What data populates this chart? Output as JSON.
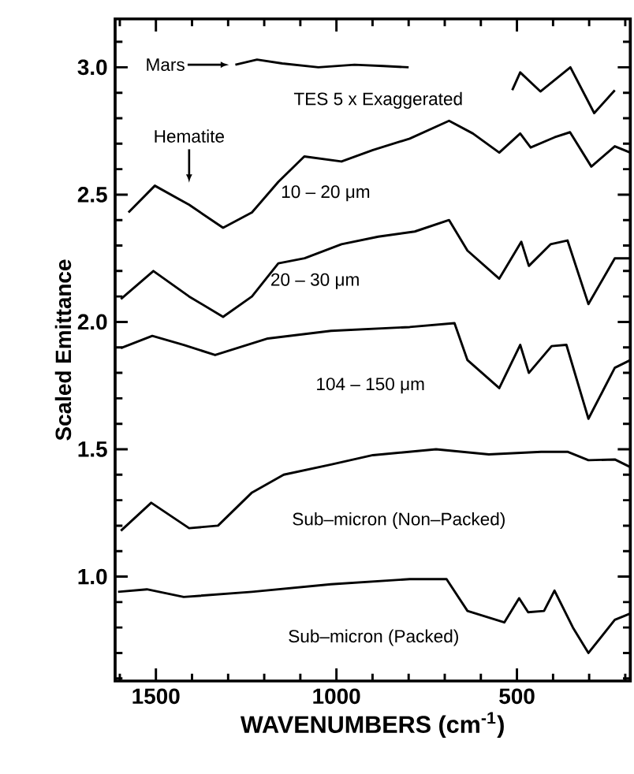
{
  "chart_data": {
    "type": "line",
    "xlabel": "WAVENUMBERS (cm$^{-1}$)",
    "ylabel": "Scaled Emittance",
    "xlim": [
      1613,
      186
    ],
    "ylim": [
      0.59,
      3.19
    ],
    "xticks": [
      1500,
      1000,
      500,
      {
        "value": 1600,
        "label": null
      },
      {
        "value": 1400,
        "label": null
      },
      {
        "value": 1300,
        "label": null
      },
      {
        "value": 1200,
        "label": null
      },
      {
        "value": 1100,
        "label": null
      },
      {
        "value": 900,
        "label": null
      },
      {
        "value": 800,
        "label": null
      },
      {
        "value": 700,
        "label": null
      },
      {
        "value": 600,
        "label": null
      },
      {
        "value": 400,
        "label": null
      },
      {
        "value": 300,
        "label": null
      },
      {
        "value": 200,
        "label": null
      }
    ],
    "yticks": [
      {
        "value": 1.0,
        "label": "1.0"
      },
      {
        "value": 1.5,
        "label": "1.5"
      },
      {
        "value": 2.0,
        "label": "2.0"
      },
      {
        "value": 2.5,
        "label": "2.5"
      },
      {
        "value": 3.0,
        "label": "3.0"
      },
      {
        "value": 0.6,
        "label": null
      },
      {
        "value": 0.7,
        "label": null
      },
      {
        "value": 0.8,
        "label": null
      },
      {
        "value": 0.9,
        "label": null
      },
      {
        "value": 1.1,
        "label": null
      },
      {
        "value": 1.2,
        "label": null
      },
      {
        "value": 1.3,
        "label": null
      },
      {
        "value": 1.4,
        "label": null
      },
      {
        "value": 1.6,
        "label": null
      },
      {
        "value": 1.7,
        "label": null
      },
      {
        "value": 1.8,
        "label": null
      },
      {
        "value": 1.9,
        "label": null
      },
      {
        "value": 2.1,
        "label": null
      },
      {
        "value": 2.2,
        "label": null
      },
      {
        "value": 2.3,
        "label": null
      },
      {
        "value": 2.4,
        "label": null
      },
      {
        "value": 2.6,
        "label": null
      },
      {
        "value": 2.7,
        "label": null
      },
      {
        "value": 2.8,
        "label": null
      },
      {
        "value": 2.9,
        "label": null
      },
      {
        "value": 3.1,
        "label": null
      }
    ],
    "grid": false,
    "legend": false,
    "marker": "none",
    "line_style": "solid",
    "series": [
      {
        "color": "#000000",
        "x": [
          1280,
          1220,
          1150,
          1050,
          950,
          870,
          800,
          null,
          513,
          491,
          435,
          352,
          286,
          229
        ],
        "values": [
          3.01,
          3.03,
          3.015,
          3.0,
          3.01,
          3.005,
          3.0,
          null,
          2.91,
          2.98,
          2.905,
          3.0,
          2.82,
          2.91
        ]
      },
      {
        "name": "10 – 20 μm",
        "color": "#000000",
        "x": [
          1576,
          1503,
          1408,
          1314,
          1234,
          1161,
          1089,
          986,
          899,
          797,
          688,
          622,
          549,
          491,
          462,
          396,
          353,
          294,
          229,
          186
        ],
        "values": [
          2.43,
          2.535,
          2.46,
          2.37,
          2.43,
          2.55,
          2.65,
          2.63,
          2.675,
          2.72,
          2.79,
          2.74,
          2.665,
          2.74,
          2.685,
          2.725,
          2.745,
          2.61,
          2.69,
          2.665
        ]
      },
      {
        "name": "20 – 30 μm",
        "color": "#000000",
        "x": [
          1597,
          1507,
          1408,
          1314,
          1234,
          1161,
          1088,
          986,
          884,
          783,
          688,
          637,
          549,
          488,
          467,
          407,
          360,
          302,
          229,
          186
        ],
        "values": [
          2.09,
          2.2,
          2.1,
          2.02,
          2.1,
          2.23,
          2.25,
          2.305,
          2.335,
          2.355,
          2.4,
          2.28,
          2.17,
          2.315,
          2.22,
          2.305,
          2.32,
          2.07,
          2.25,
          2.25
        ]
      },
      {
        "name": "104 – 150 μm",
        "color": "#000000",
        "x": [
          1597,
          1510,
          1423,
          1336,
          1190,
          1015,
          797,
          673,
          637,
          549,
          491,
          467,
          404,
          363,
          302,
          229,
          186
        ],
        "values": [
          1.897,
          1.945,
          1.91,
          1.87,
          1.935,
          1.965,
          1.98,
          1.995,
          1.85,
          1.74,
          1.91,
          1.8,
          1.905,
          1.91,
          1.62,
          1.82,
          1.85
        ]
      },
      {
        "name": "Sub–micron (Non–Packed)",
        "color": "#000000",
        "x": [
          1597,
          1513,
          1408,
          1328,
          1234,
          1146,
          1015,
          899,
          724,
          578,
          433,
          360,
          302,
          229,
          186
        ],
        "values": [
          1.18,
          1.29,
          1.19,
          1.2,
          1.33,
          1.4,
          1.44,
          1.477,
          1.5,
          1.48,
          1.49,
          1.49,
          1.457,
          1.46,
          1.43
        ]
      },
      {
        "name": "Sub–micron (Packed)",
        "color": "#000000",
        "x": [
          1605,
          1525,
          1423,
          1234,
          1015,
          797,
          695,
          637,
          535,
          494,
          469,
          425,
          396,
          345,
          302,
          229,
          186
        ],
        "values": [
          0.94,
          0.95,
          0.92,
          0.94,
          0.97,
          0.99,
          0.99,
          0.865,
          0.82,
          0.915,
          0.86,
          0.865,
          0.945,
          0.8,
          0.7,
          0.83,
          0.855
        ]
      }
    ],
    "annotations": [
      "Mars",
      "Hematite",
      "TES 5 x Exaggerated"
    ]
  }
}
